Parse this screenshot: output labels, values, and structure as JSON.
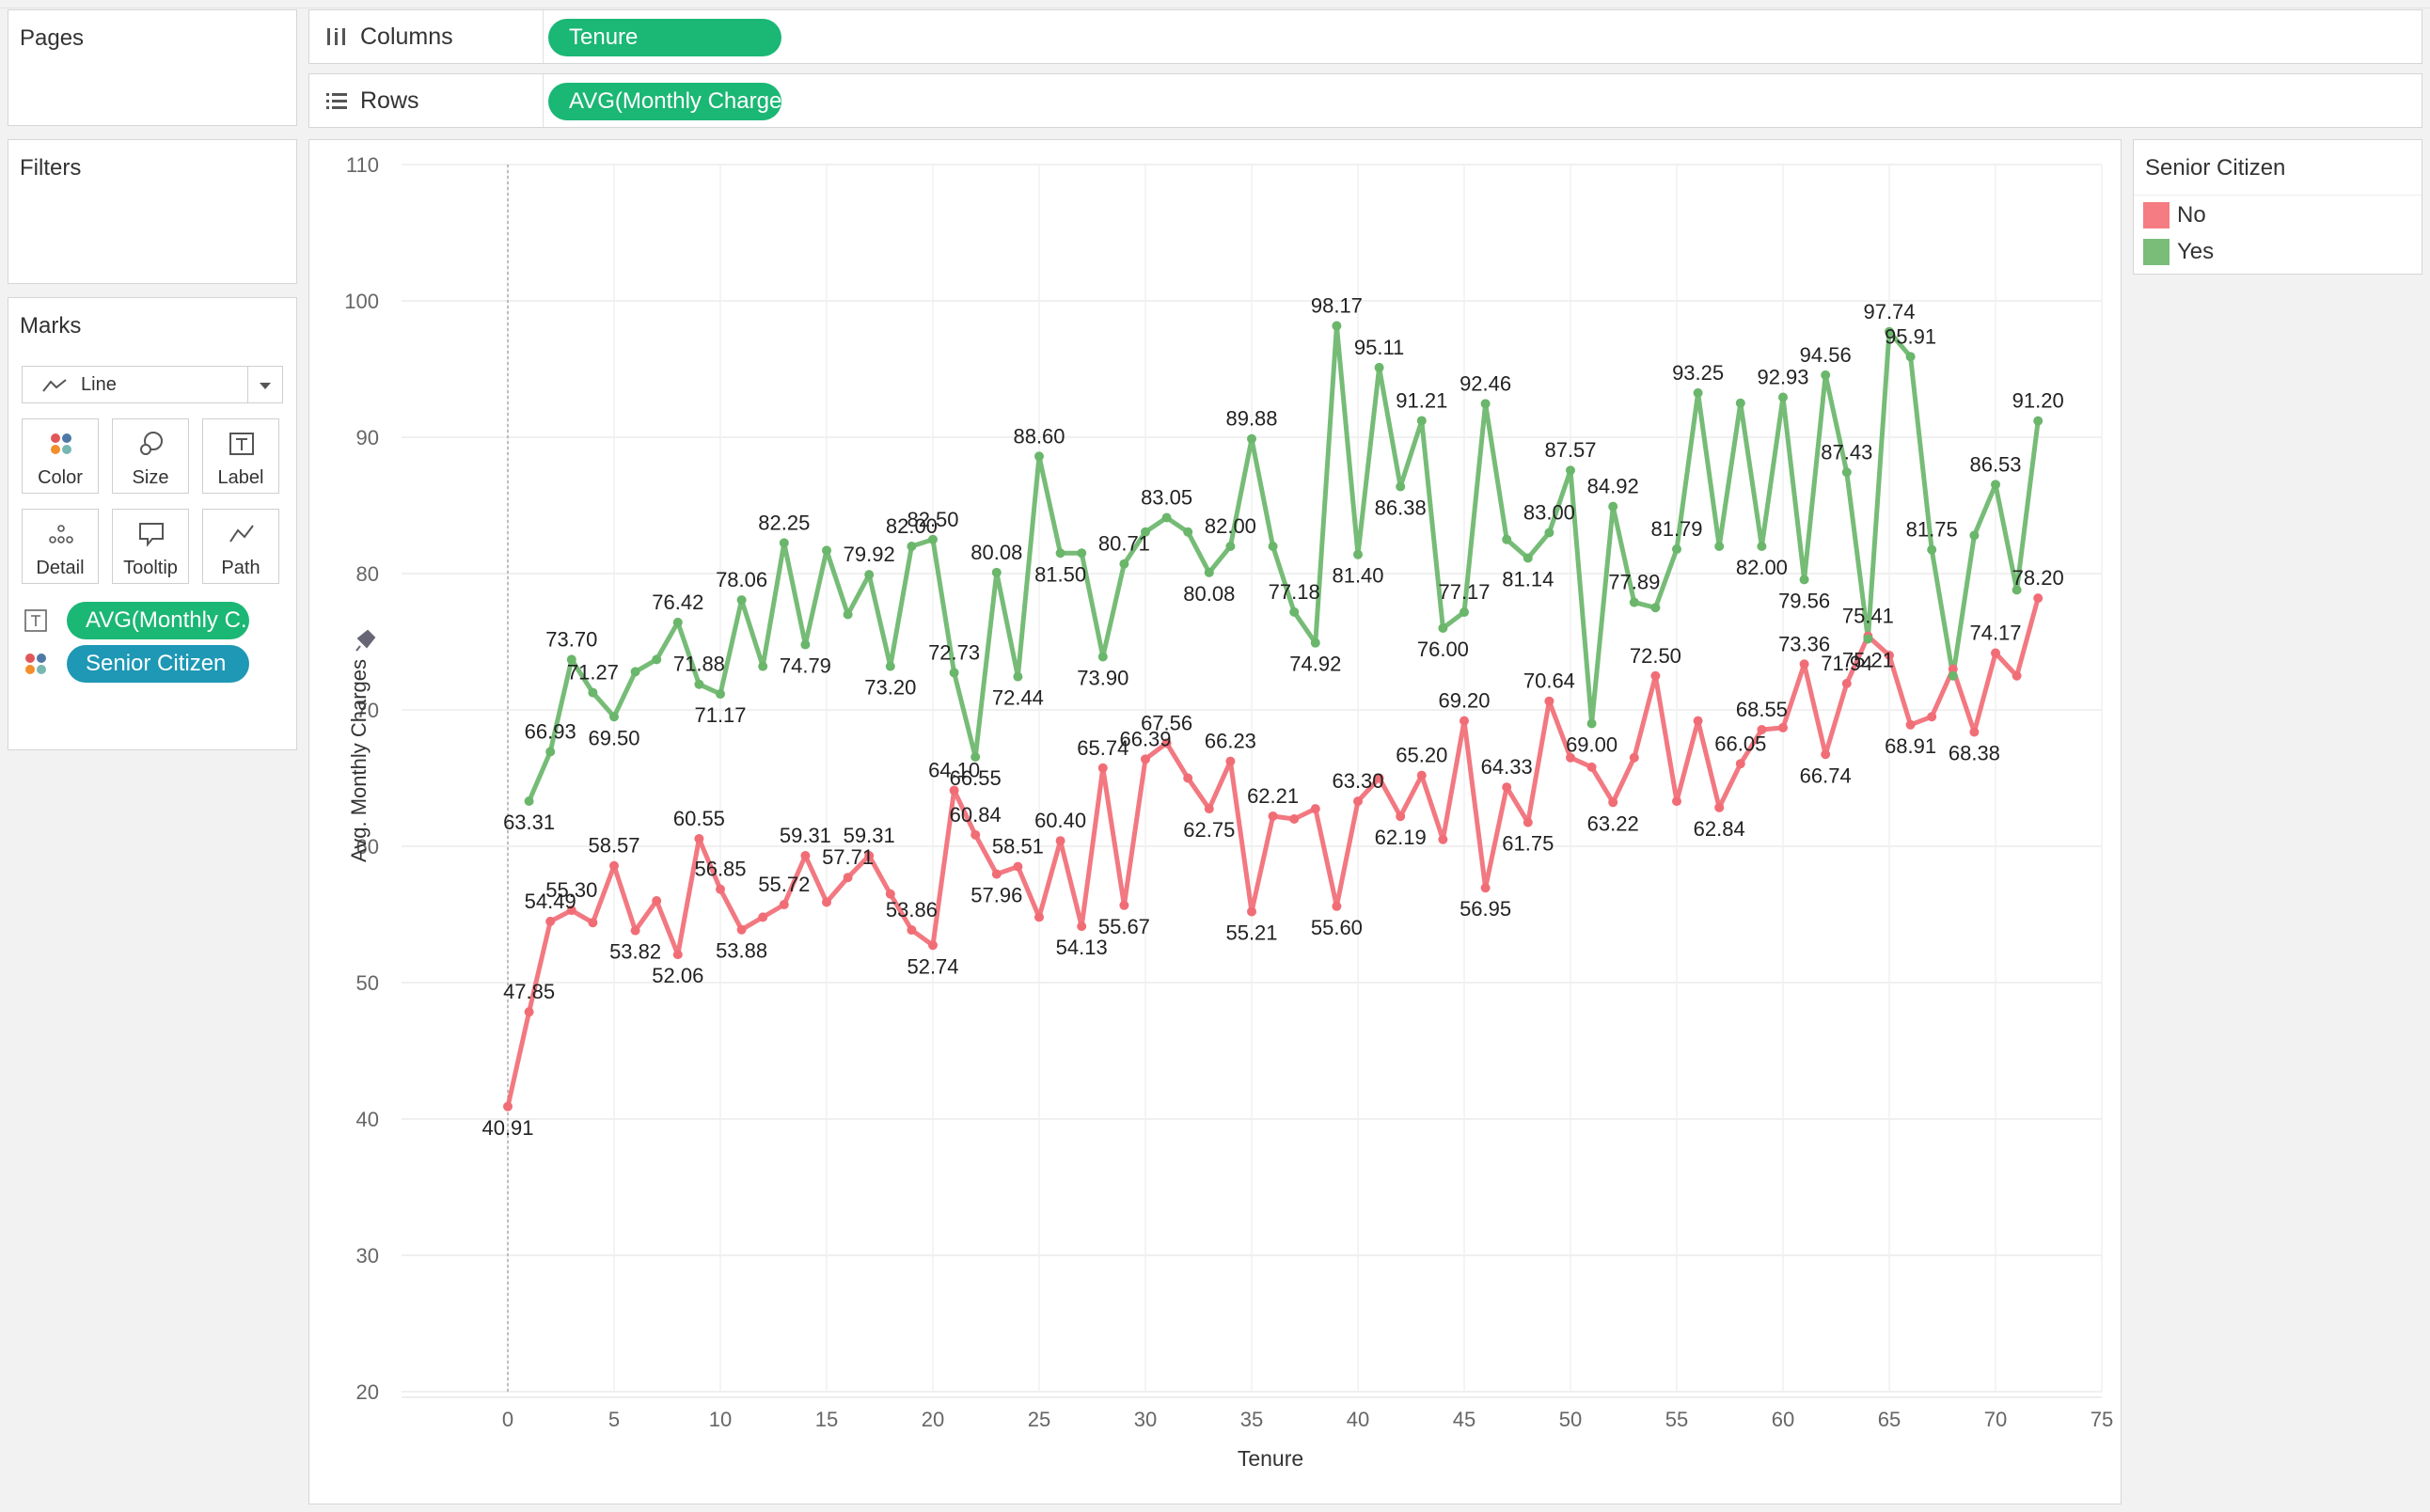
{
  "top_tabs": [
    "",
    "",
    "",
    "",
    ""
  ],
  "pages": {
    "title": "Pages"
  },
  "filters": {
    "title": "Filters"
  },
  "marks": {
    "title": "Marks",
    "type_label": "Line",
    "buttons": {
      "color": "Color",
      "size": "Size",
      "label": "Label",
      "detail": "Detail",
      "tooltip": "Tooltip",
      "path": "Path"
    },
    "fields": [
      {
        "label": "AVG(Monthly C..",
        "icon": "text-icon"
      },
      {
        "label": "Senior Citizen",
        "icon": "color-dots-icon"
      }
    ]
  },
  "shelves": {
    "columns_label": "Columns",
    "columns_pill": "Tenure",
    "rows_label": "Rows",
    "rows_pill": "AVG(Monthly Charges)"
  },
  "legend": {
    "title": "Senior Citizen",
    "items": [
      {
        "label": "No",
        "color": "#f16d76"
      },
      {
        "label": "Yes",
        "color": "#6ab66b"
      }
    ]
  },
  "chart_data": {
    "type": "line",
    "xlabel": "Tenure",
    "ylabel": "Avg. Monthly Charges",
    "xlim": [
      -5,
      75
    ],
    "ylim": [
      20,
      110
    ],
    "x_ticks": [
      0,
      5,
      10,
      15,
      20,
      25,
      30,
      35,
      40,
      45,
      50,
      55,
      60,
      65,
      70,
      75
    ],
    "y_ticks": [
      20,
      30,
      40,
      50,
      60,
      70,
      80,
      90,
      100,
      110
    ],
    "grid": true,
    "series": [
      {
        "name": "No",
        "color": "#f16d76",
        "x": [
          0,
          1,
          2,
          3,
          4,
          5,
          6,
          7,
          8,
          9,
          10,
          11,
          12,
          13,
          14,
          15,
          16,
          17,
          18,
          19,
          20,
          21,
          22,
          23,
          24,
          25,
          26,
          27,
          28,
          29,
          30,
          31,
          32,
          33,
          34,
          35,
          36,
          37,
          38,
          39,
          40,
          41,
          42,
          43,
          44,
          45,
          46,
          47,
          48,
          49,
          50,
          51,
          52,
          53,
          54,
          55,
          56,
          57,
          58,
          59,
          60,
          61,
          62,
          63,
          64,
          65,
          66,
          67,
          68,
          69,
          70,
          71,
          72
        ],
        "values": [
          40.91,
          47.85,
          54.49,
          55.3,
          54.4,
          58.57,
          53.82,
          56.0,
          52.06,
          60.55,
          56.85,
          53.88,
          54.8,
          55.72,
          59.31,
          55.9,
          57.71,
          59.31,
          56.5,
          53.86,
          52.74,
          64.1,
          60.84,
          57.96,
          58.51,
          54.8,
          60.4,
          54.13,
          65.74,
          55.67,
          66.39,
          67.56,
          65.0,
          62.75,
          66.23,
          55.21,
          62.21,
          62.0,
          62.75,
          55.6,
          63.3,
          65.0,
          62.19,
          65.2,
          60.5,
          69.2,
          56.95,
          64.33,
          61.75,
          70.64,
          66.5,
          65.8,
          63.22,
          66.5,
          72.5,
          63.3,
          69.2,
          62.84,
          66.05,
          68.55,
          68.7,
          73.36,
          66.74,
          71.94,
          75.41,
          74.0,
          68.91,
          69.5,
          73.0,
          68.38,
          74.17,
          72.5,
          78.2
        ],
        "labels": {
          "0": "40.91",
          "1": "47.85",
          "2": "54.49",
          "3": "55.30",
          "5": "58.57",
          "6": "53.82",
          "8": "52.06",
          "9": "60.55",
          "10": "56.85",
          "11": "53.88",
          "13": "55.72",
          "14": "59.31",
          "16": "57.71",
          "17": "59.31",
          "19": "53.86",
          "20": "52.74",
          "21": "64.10",
          "22": "60.84",
          "23": "57.96",
          "24": "58.51",
          "26": "60.40",
          "27": "54.13",
          "28": "65.74",
          "29": "55.67",
          "30": "66.39",
          "31": "67.56",
          "33": "62.75",
          "34": "66.23",
          "35": "55.21",
          "36": "62.21",
          "39": "55.60",
          "40": "63.30",
          "42": "62.19",
          "43": "65.20",
          "45": "69.20",
          "46": "56.95",
          "47": "64.33",
          "48": "61.75",
          "49": "70.64",
          "52": "63.22",
          "54": "72.50",
          "57": "62.84",
          "58": "66.05",
          "59": "68.55",
          "61": "73.36",
          "62": "66.74",
          "63": "71.94",
          "64": "75.41",
          "66": "68.91",
          "69": "68.38",
          "70": "74.17",
          "72": "78.20"
        }
      },
      {
        "name": "Yes",
        "color": "#6ab66b",
        "x": [
          1,
          2,
          3,
          4,
          5,
          6,
          7,
          8,
          9,
          10,
          11,
          12,
          13,
          14,
          15,
          16,
          17,
          18,
          19,
          20,
          21,
          22,
          23,
          24,
          25,
          26,
          27,
          28,
          29,
          30,
          31,
          32,
          33,
          34,
          35,
          36,
          37,
          38,
          39,
          40,
          41,
          42,
          43,
          44,
          45,
          46,
          47,
          48,
          49,
          50,
          51,
          52,
          53,
          54,
          55,
          56,
          57,
          58,
          59,
          60,
          61,
          62,
          63,
          64,
          65,
          66,
          67,
          68,
          69,
          70,
          71,
          72
        ],
        "values": [
          63.31,
          66.93,
          73.7,
          71.27,
          69.5,
          72.8,
          73.7,
          76.42,
          71.88,
          71.17,
          78.06,
          73.2,
          82.25,
          74.79,
          81.7,
          77.0,
          79.92,
          73.2,
          82.0,
          82.5,
          72.73,
          66.55,
          80.08,
          72.44,
          88.6,
          81.5,
          81.5,
          73.9,
          80.71,
          83.05,
          84.1,
          83.05,
          80.08,
          82.0,
          89.88,
          82.0,
          77.18,
          74.92,
          98.17,
          81.4,
          95.11,
          86.38,
          91.21,
          76.0,
          77.17,
          92.46,
          82.5,
          81.14,
          83.0,
          87.57,
          69.0,
          84.92,
          77.89,
          77.5,
          81.79,
          93.25,
          82.0,
          92.5,
          82.0,
          92.93,
          79.56,
          94.56,
          87.43,
          75.21,
          97.74,
          95.91,
          81.75,
          72.5,
          82.8,
          86.53,
          78.8,
          91.2
        ],
        "labels": {
          "1": "63.31",
          "2": "66.93",
          "3": "73.70",
          "4": "71.27",
          "5": "69.50",
          "8": "76.42",
          "9": "71.88",
          "10": "71.17",
          "11": "78.06",
          "13": "82.25",
          "14": "74.79",
          "17": "79.92",
          "18": "73.20",
          "19": "82.00",
          "20": "82.50",
          "21": "72.73",
          "22": "66.55",
          "23": "80.08",
          "24": "72.44",
          "25": "88.60",
          "26": "81.50",
          "28": "73.90",
          "29": "80.71",
          "31": "83.05",
          "33": "80.08",
          "34": "82.00",
          "35": "89.88",
          "37": "77.18",
          "38": "74.92",
          "39": "98.17",
          "40": "81.40",
          "41": "95.11",
          "42": "86.38",
          "43": "91.21",
          "44": "76.00",
          "45": "77.17",
          "46": "92.46",
          "48": "81.14",
          "49": "83.00",
          "50": "87.57",
          "51": "69.00",
          "52": "84.92",
          "53": "77.89",
          "55": "81.79",
          "56": "93.25",
          "59": "82.00",
          "60": "92.93",
          "61": "79.56",
          "62": "94.56",
          "63": "87.43",
          "64": "75.21",
          "65": "97.74",
          "66": "95.91",
          "67": "81.75",
          "70": "86.53",
          "72": "91.20"
        }
      }
    ]
  }
}
